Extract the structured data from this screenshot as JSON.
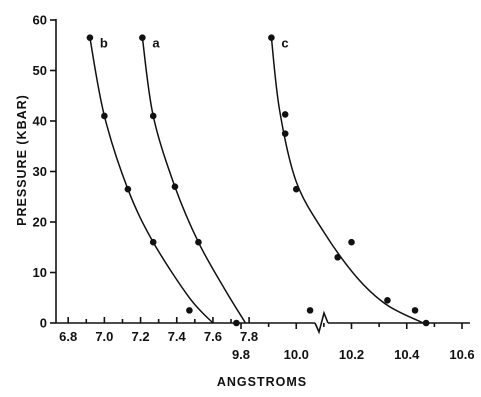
{
  "chart_data": {
    "type": "scatter",
    "title": "",
    "xlabel": "ANGSTROMS",
    "ylabel": "PRESSURE (KBAR)",
    "ylim": [
      0,
      60
    ],
    "y_ticks": [
      "0",
      "10",
      "20",
      "30",
      "40",
      "50",
      "60"
    ],
    "x_axes": [
      {
        "name": "upper",
        "range": [
          6.8,
          7.9
        ],
        "ticks": [
          "6.8",
          "7.0",
          "7.2",
          "7.4",
          "7.6",
          "7.8"
        ]
      },
      {
        "name": "lower",
        "range": [
          9.6,
          10.6
        ],
        "ticks": [
          "9.8",
          "10.0",
          "10.2",
          "10.4",
          "10.6"
        ]
      }
    ],
    "grid": false,
    "legend": "none",
    "axis_break": true,
    "series": [
      {
        "name": "b",
        "x_axis": "upper",
        "points": [
          [
            6.92,
            56.5
          ],
          [
            7.0,
            41
          ],
          [
            7.13,
            26.5
          ],
          [
            7.27,
            16
          ],
          [
            7.47,
            2.5
          ]
        ],
        "fit": [
          [
            6.92,
            56.5
          ],
          [
            7.0,
            41
          ],
          [
            7.13,
            26.5
          ],
          [
            7.27,
            16
          ],
          [
            7.47,
            5
          ],
          [
            7.6,
            0
          ]
        ]
      },
      {
        "name": "a",
        "x_axis": "upper",
        "points": [
          [
            7.21,
            56.5
          ],
          [
            7.27,
            41
          ],
          [
            7.39,
            27
          ],
          [
            7.52,
            16
          ],
          [
            7.73,
            0
          ]
        ],
        "fit": [
          [
            7.21,
            56.5
          ],
          [
            7.27,
            41
          ],
          [
            7.39,
            27
          ],
          [
            7.52,
            16
          ],
          [
            7.66,
            7
          ],
          [
            7.78,
            0
          ]
        ]
      },
      {
        "name": "c",
        "x_axis": "lower",
        "points": [
          [
            9.91,
            56.5
          ],
          [
            9.96,
            41.3
          ],
          [
            9.96,
            37.5
          ],
          [
            10.0,
            26.5
          ],
          [
            10.15,
            13
          ],
          [
            10.2,
            16
          ],
          [
            10.33,
            4.5
          ],
          [
            10.43,
            2.5
          ],
          [
            10.47,
            0
          ],
          [
            10.05,
            2.5
          ]
        ],
        "fit": [
          [
            9.91,
            56.5
          ],
          [
            9.94,
            42
          ],
          [
            10.0,
            28
          ],
          [
            10.1,
            18
          ],
          [
            10.22,
            9
          ],
          [
            10.33,
            3.5
          ],
          [
            10.46,
            0
          ]
        ]
      }
    ]
  }
}
